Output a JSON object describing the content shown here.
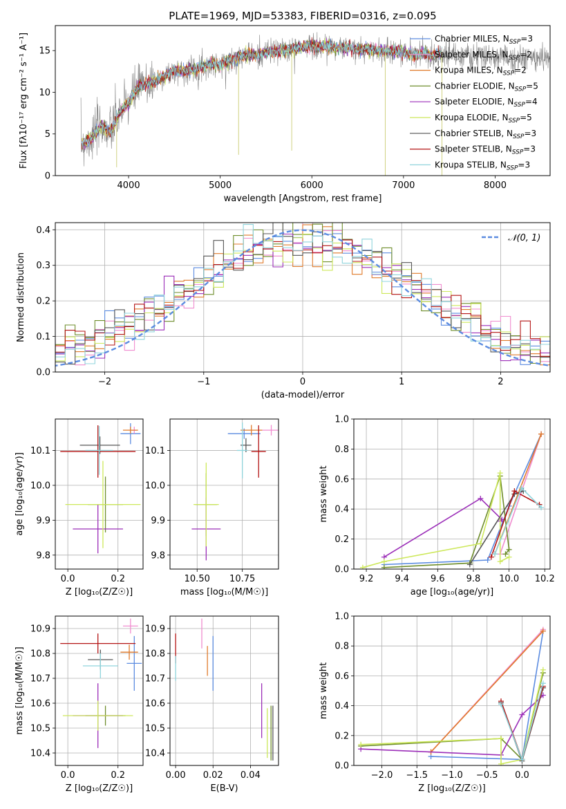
{
  "figure": {
    "title": "PLATE=1969, MJD=53383, FIBERID=0316, z=0.095"
  },
  "model_colors": {
    "Chabrier MILES": "#5b8be0",
    "Salpeter MILES": "#f08ccf",
    "Kroupa MILES": "#e07a2a",
    "Chabrier ELODIE": "#6e8d2b",
    "Salpeter ELODIE": "#9b2db8",
    "Kroupa ELODIE": "#cde85a",
    "Chabrier STELIB": "#555555",
    "Salpeter STELIB": "#b41414",
    "Kroupa STELIB": "#8fd4dc"
  },
  "chart_data": [
    {
      "id": "spectrum",
      "type": "line",
      "xlabel": "wavelength [Angstrom, rest frame]",
      "ylabel": "Flux [fλ10⁻¹⁷ erg cm⁻² s⁻¹ A⁻¹]",
      "xlim": [
        3200,
        8600
      ],
      "ylim": [
        0,
        18
      ],
      "xticks": [
        4000,
        5000,
        6000,
        7000,
        8000
      ],
      "yticks": [
        0,
        5,
        10,
        15
      ],
      "grid": false,
      "legend_position": "right",
      "series": [
        {
          "name": "data",
          "color": "#808080",
          "x": [
            3500,
            3600,
            3700,
            3800,
            3900,
            4000,
            4100,
            4200,
            4300,
            4400,
            4500,
            4600,
            4700,
            4800,
            4900,
            5000,
            5100,
            5200,
            5300,
            5400,
            5500,
            5600,
            5700,
            5800,
            5900,
            6000,
            6100,
            6200,
            6300,
            6400,
            6500,
            6600,
            6700,
            6800,
            6900,
            7000,
            7100,
            7200,
            7300,
            7400,
            7500,
            7600,
            7700,
            7800,
            7900,
            8000,
            8100,
            8200,
            8300,
            8400,
            8500,
            8600
          ],
          "y": [
            3.9,
            4.5,
            6.0,
            5.2,
            7.5,
            8.8,
            10.6,
            11.0,
            11.4,
            12.0,
            12.5,
            12.5,
            12.7,
            13.0,
            13.4,
            13.2,
            13.8,
            14.2,
            14.5,
            14.4,
            14.8,
            14.9,
            15.0,
            15.2,
            15.4,
            15.6,
            15.4,
            15.6,
            15.2,
            15.4,
            15.0,
            15.2,
            15.0,
            14.9,
            15.0,
            14.8,
            14.5,
            14.7,
            14.4,
            14.6,
            14.5,
            14.3,
            14.4,
            14.2,
            14.3,
            14.2,
            14.1,
            14.2,
            14.0,
            14.1,
            14.1,
            14.0
          ]
        },
        {
          "name": "Chabrier MILES, N_SSP=3",
          "color": "#5b8be0"
        },
        {
          "name": "Salpeter MILES, N_SSP=2",
          "color": "#f08ccf"
        },
        {
          "name": "Kroupa MILES, N_SSP=2",
          "color": "#e07a2a"
        },
        {
          "name": "Chabrier ELODIE, N_SSP=5",
          "color": "#6e8d2b"
        },
        {
          "name": "Salpeter ELODIE, N_SSP=4",
          "color": "#9b2db8"
        },
        {
          "name": "Kroupa ELODIE, N_SSP=5",
          "color": "#cde85a"
        },
        {
          "name": "Chabrier STELIB, N_SSP=3",
          "color": "#555555"
        },
        {
          "name": "Salpeter STELIB, N_SSP=3",
          "color": "#b41414"
        },
        {
          "name": "Kroupa STELIB, N_SSP=3",
          "color": "#8fd4dc"
        }
      ]
    },
    {
      "id": "residuals",
      "type": "line",
      "xlabel": "(data-model)/error",
      "ylabel": "Normed distribution",
      "xlim": [
        -2.5,
        2.5
      ],
      "ylim": [
        0,
        0.42
      ],
      "xticks": [
        -2,
        -1,
        0,
        1,
        2
      ],
      "yticks": [
        0.0,
        0.1,
        0.2,
        0.3,
        0.4
      ],
      "grid": true,
      "legend": [
        {
          "name": "𝒩(0, 1)",
          "color": "#5b8be0",
          "style": "dashed"
        }
      ],
      "legend_position": "top-right",
      "gaussian": {
        "mean": 0,
        "sigma": 1
      },
      "histogram_bin_width": 0.1
    },
    {
      "id": "age_vs_Z",
      "type": "scatter",
      "xlabel": "Z [log₁₀(Z/Z☉)]",
      "ylabel": "age  [log₁₀(age/yr)]",
      "xlim": [
        -0.05,
        0.3
      ],
      "ylim": [
        9.76,
        10.19
      ],
      "xticks": [
        0.0,
        0.2
      ],
      "yticks": [
        9.8,
        9.9,
        10.0,
        10.1
      ],
      "grid": true,
      "points": [
        {
          "model": "Chabrier MILES",
          "x": 0.25,
          "y": 10.148,
          "xerr": 0.04,
          "yerr": 0.03
        },
        {
          "model": "Salpeter MILES",
          "x": 0.265,
          "y": 10.158,
          "xerr": 0.01,
          "yerr": 0.01
        },
        {
          "model": "Kroupa MILES",
          "x": 0.25,
          "y": 10.158,
          "xerr": 0.03,
          "yerr": 0.01
        },
        {
          "model": "Chabrier ELODIE",
          "x": 0.15,
          "y": 9.945,
          "xerr": 0.07,
          "yerr": 0.08
        },
        {
          "model": "Salpeter ELODIE",
          "x": 0.12,
          "y": 9.875,
          "xerr": 0.1,
          "yerr": 0.07
        },
        {
          "model": "Kroupa ELODIE",
          "x": 0.14,
          "y": 9.945,
          "xerr": 0.15,
          "yerr": 0.125
        },
        {
          "model": "Chabrier STELIB",
          "x": 0.128,
          "y": 10.115,
          "xerr": 0.08,
          "yerr": 0.025
        },
        {
          "model": "Salpeter STELIB",
          "x": 0.12,
          "y": 10.097,
          "xerr": 0.15,
          "yerr": 0.075
        },
        {
          "model": "Kroupa STELIB",
          "x": 0.125,
          "y": 10.1,
          "xerr": 0.055,
          "yerr": 0.07
        }
      ]
    },
    {
      "id": "age_vs_mass",
      "type": "scatter",
      "xlabel": "mass [log₁₀(M/M☉)]",
      "ylabel": "",
      "xlim": [
        10.35,
        10.95
      ],
      "ylim": [
        9.76,
        10.19
      ],
      "xticks": [
        10.5,
        10.75
      ],
      "yticks": [
        9.8,
        9.9,
        10.0,
        10.1
      ],
      "grid": true,
      "points": [
        {
          "model": "Chabrier MILES",
          "x": 10.76,
          "y": 10.148,
          "xerr": 0.09,
          "yerr": 0.015
        },
        {
          "model": "Salpeter MILES",
          "x": 10.91,
          "y": 10.158,
          "xerr": 0.05,
          "yerr": 0.015
        },
        {
          "model": "Kroupa MILES",
          "x": 10.8,
          "y": 10.158,
          "xerr": 0.06,
          "yerr": 0.015
        },
        {
          "model": "Chabrier ELODIE",
          "x": 10.55,
          "y": 9.945,
          "xerr": 0.06,
          "yerr": 0.09
        },
        {
          "model": "Salpeter ELODIE",
          "x": 10.55,
          "y": 9.875,
          "xerr": 0.08,
          "yerr": 0.09
        },
        {
          "model": "Kroupa ELODIE",
          "x": 10.55,
          "y": 9.945,
          "xerr": 0.07,
          "yerr": 0.12
        },
        {
          "model": "Chabrier STELIB",
          "x": 10.77,
          "y": 10.115,
          "xerr": 0.03,
          "yerr": 0.02
        },
        {
          "model": "Salpeter STELIB",
          "x": 10.84,
          "y": 10.097,
          "xerr": 0.04,
          "yerr": 0.075
        },
        {
          "model": "Kroupa STELIB",
          "x": 10.75,
          "y": 10.1,
          "xerr": 0.03,
          "yerr": 0.08
        }
      ]
    },
    {
      "id": "mass_weight_vs_age",
      "type": "line",
      "xlabel": "age  [log₁₀(age/yr)]",
      "ylabel": "mass weight",
      "xlim": [
        9.13,
        10.23
      ],
      "ylim": [
        0,
        1.0
      ],
      "xticks": [
        9.2,
        9.4,
        9.6,
        9.8,
        10.0,
        10.2
      ],
      "yticks": [
        0.0,
        0.2,
        0.4,
        0.6,
        0.8,
        1.0
      ],
      "grid": true,
      "series": [
        {
          "model": "Chabrier MILES",
          "x": [
            9.3,
            9.88,
            10.0,
            10.18
          ],
          "y": [
            0.03,
            0.06,
            0.42,
            0.9
          ]
        },
        {
          "model": "Salpeter MILES",
          "x": [
            9.95,
            10.18
          ],
          "y": [
            0.1,
            0.9
          ]
        },
        {
          "model": "Kroupa MILES",
          "x": [
            9.92,
            10.18
          ],
          "y": [
            0.1,
            0.9
          ]
        },
        {
          "model": "Chabrier ELODIE",
          "x": [
            9.3,
            9.78,
            9.95,
            10.0,
            9.98
          ],
          "y": [
            0.01,
            0.04,
            0.62,
            0.13,
            0.1
          ]
        },
        {
          "model": "Salpeter ELODIE",
          "x": [
            9.3,
            9.84,
            9.96,
            9.95
          ],
          "y": [
            0.08,
            0.47,
            0.33,
            0.32
          ]
        },
        {
          "model": "Kroupa ELODIE",
          "x": [
            9.18,
            9.3,
            9.84,
            9.95,
            9.95,
            10.0
          ],
          "y": [
            0.01,
            0.05,
            0.17,
            0.64,
            0.05,
            0.08
          ]
        },
        {
          "model": "Chabrier STELIB",
          "x": [
            9.78,
            10.03,
            10.08
          ],
          "y": [
            0.03,
            0.5,
            0.52
          ]
        },
        {
          "model": "Salpeter STELIB",
          "x": [
            9.9,
            10.03,
            10.17
          ],
          "y": [
            0.08,
            0.52,
            0.43
          ]
        },
        {
          "model": "Kroupa STELIB",
          "x": [
            9.92,
            10.07,
            10.18
          ],
          "y": [
            0.1,
            0.54,
            0.41
          ]
        }
      ]
    },
    {
      "id": "mass_vs_Z",
      "type": "scatter",
      "xlabel": "Z [log₁₀(Z/Z☉)]",
      "ylabel": "mass [log₁₀(M/M☉)]",
      "xlim": [
        -0.05,
        0.3
      ],
      "ylim": [
        10.35,
        10.95
      ],
      "xticks": [
        0.0,
        0.2
      ],
      "yticks": [
        10.4,
        10.5,
        10.6,
        10.7,
        10.8,
        10.9
      ],
      "grid": true,
      "points": [
        {
          "model": "Chabrier MILES",
          "x": 0.265,
          "y": 10.76,
          "xerr": 0.03,
          "yerr": 0.11
        },
        {
          "model": "Salpeter MILES",
          "x": 0.25,
          "y": 10.91,
          "xerr": 0.03,
          "yerr": 0.03
        },
        {
          "model": "Kroupa MILES",
          "x": 0.245,
          "y": 10.805,
          "xerr": 0.035,
          "yerr": 0.03
        },
        {
          "model": "Chabrier ELODIE",
          "x": 0.15,
          "y": 10.55,
          "xerr": 0.08,
          "yerr": 0.04
        },
        {
          "model": "Salpeter ELODIE",
          "x": 0.12,
          "y": 10.55,
          "xerr": 0.1,
          "yerr": 0.13
        },
        {
          "model": "Kroupa ELODIE",
          "x": 0.12,
          "y": 10.55,
          "xerr": 0.14,
          "yerr": 0.06
        },
        {
          "model": "Chabrier STELIB",
          "x": 0.13,
          "y": 10.775,
          "xerr": 0.05,
          "yerr": 0.04
        },
        {
          "model": "Salpeter STELIB",
          "x": 0.12,
          "y": 10.84,
          "xerr": 0.15,
          "yerr": 0.04
        },
        {
          "model": "Kroupa STELIB",
          "x": 0.13,
          "y": 10.75,
          "xerr": 0.07,
          "yerr": 0.05
        }
      ]
    },
    {
      "id": "mass_vs_ebv",
      "type": "scatter",
      "xlabel": "E(B-V)",
      "ylabel": "",
      "xlim": [
        -0.003,
        0.055
      ],
      "ylim": [
        10.35,
        10.95
      ],
      "xticks": [
        0.0,
        0.02,
        0.04
      ],
      "yticks": [
        10.4,
        10.5,
        10.6,
        10.7,
        10.8,
        10.9
      ],
      "grid": true,
      "points": [
        {
          "model": "Chabrier MILES",
          "x": 0.02,
          "y": 10.76,
          "yerr": 0.11
        },
        {
          "model": "Salpeter MILES",
          "x": 0.014,
          "y": 10.88,
          "yerr": 0.06
        },
        {
          "model": "Kroupa MILES",
          "x": 0.017,
          "y": 10.77,
          "yerr": 0.06
        },
        {
          "model": "Chabrier ELODIE",
          "x": 0.051,
          "y": 10.48,
          "yerr": 0.11
        },
        {
          "model": "Salpeter ELODIE",
          "x": 0.046,
          "y": 10.57,
          "yerr": 0.11
        },
        {
          "model": "Kroupa ELODIE",
          "x": 0.049,
          "y": 10.48,
          "yerr": 0.1
        },
        {
          "model": "Chabrier STELIB",
          "x": 0.052,
          "y": 10.48,
          "yerr": 0.11
        },
        {
          "model": "Salpeter STELIB",
          "x": 0.0,
          "y": 10.82,
          "yerr": 0.06
        },
        {
          "model": "Kroupa STELIB",
          "x": 0.0,
          "y": 10.74,
          "yerr": 0.05
        }
      ]
    },
    {
      "id": "mass_weight_vs_Z",
      "type": "line",
      "xlabel": "Z [log₁₀(Z/Z☉)]",
      "ylabel": "mass weight",
      "xlim": [
        -2.4,
        0.4
      ],
      "ylim": [
        0,
        1.0
      ],
      "xticks": [
        -2.0,
        -1.5,
        -1.0,
        -0.5,
        0.0
      ],
      "yticks": [
        0.0,
        0.2,
        0.4,
        0.6,
        0.8,
        1.0
      ],
      "grid": true,
      "series": [
        {
          "model": "Chabrier MILES",
          "x": [
            -1.3,
            0.0,
            0.3
          ],
          "y": [
            0.06,
            0.04,
            0.9
          ]
        },
        {
          "model": "Salpeter MILES",
          "x": [
            -1.3,
            0.3
          ],
          "y": [
            0.09,
            0.91
          ]
        },
        {
          "model": "Kroupa MILES",
          "x": [
            -1.3,
            0.3
          ],
          "y": [
            0.09,
            0.9
          ]
        },
        {
          "model": "Chabrier ELODIE",
          "x": [
            -2.3,
            -0.3,
            0.0,
            0.3
          ],
          "y": [
            0.13,
            0.18,
            0.04,
            0.62
          ]
        },
        {
          "model": "Salpeter ELODIE",
          "x": [
            -2.3,
            -0.3,
            0.0,
            0.3
          ],
          "y": [
            0.11,
            0.07,
            0.34,
            0.47
          ]
        },
        {
          "model": "Kroupa ELODIE",
          "x": [
            -2.3,
            -0.3,
            -0.3,
            0.0,
            0.3
          ],
          "y": [
            0.14,
            0.18,
            0.01,
            0.04,
            0.64
          ]
        },
        {
          "model": "Chabrier STELIB",
          "x": [
            -0.3,
            0.0,
            0.3
          ],
          "y": [
            0.42,
            0.03,
            0.52
          ]
        },
        {
          "model": "Salpeter STELIB",
          "x": [
            -0.3,
            0.0,
            0.3
          ],
          "y": [
            0.43,
            0.04,
            0.53
          ]
        },
        {
          "model": "Kroupa STELIB",
          "x": [
            -0.3,
            0.0,
            0.3
          ],
          "y": [
            0.41,
            0.04,
            0.55
          ]
        }
      ]
    }
  ]
}
